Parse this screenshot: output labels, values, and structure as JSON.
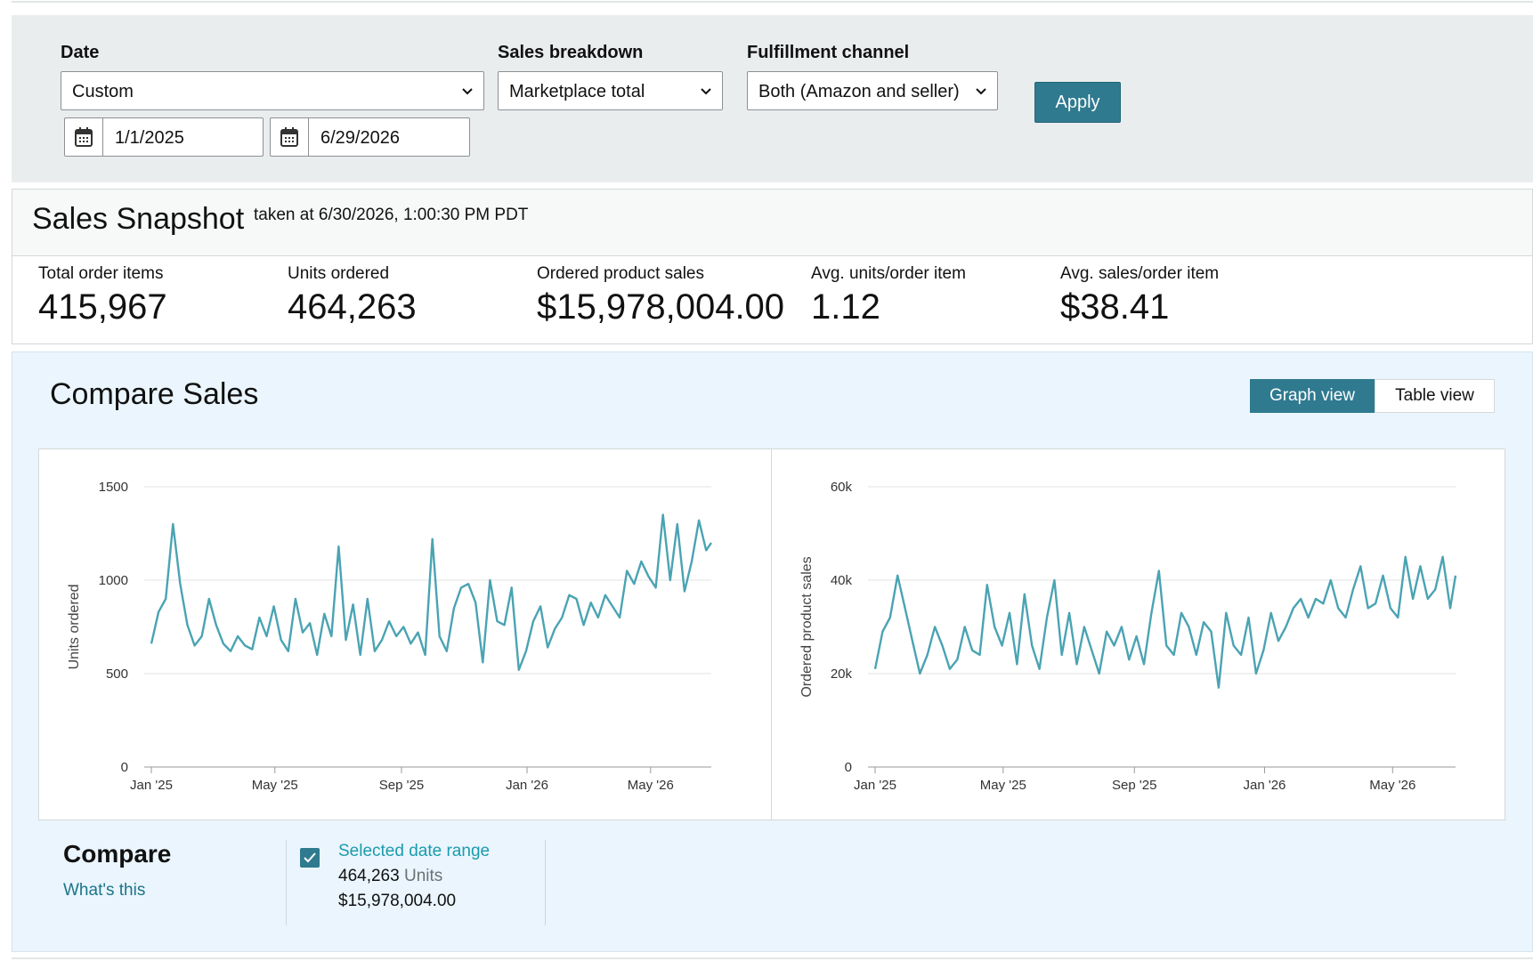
{
  "filters": {
    "date_label": "Date",
    "date_value": "Custom",
    "start_date": "1/1/2025",
    "end_date": "6/29/2026",
    "breakdown_label": "Sales breakdown",
    "breakdown_value": "Marketplace total",
    "fulfillment_label": "Fulfillment channel",
    "fulfillment_value": "Both (Amazon and seller)",
    "apply_label": "Apply"
  },
  "snapshot": {
    "title": "Sales Snapshot",
    "taken": "taken at 6/30/2026, 1:00:30 PM PDT",
    "metrics": [
      {
        "label": "Total order items",
        "value": "415,967"
      },
      {
        "label": "Units ordered",
        "value": "464,263"
      },
      {
        "label": "Ordered product sales",
        "value": "$15,978,004.00"
      },
      {
        "label": "Avg. units/order item",
        "value": "1.12"
      },
      {
        "label": "Avg. sales/order item",
        "value": "$38.41"
      }
    ]
  },
  "compare": {
    "title": "Compare Sales",
    "graph_view": "Graph view",
    "table_view": "Table view",
    "section_title": "Compare",
    "whats_this": "What's this",
    "legend": {
      "name": "Selected date range",
      "units_value": "464,263",
      "units_word": "Units",
      "sales": "$15,978,004.00"
    }
  },
  "colors": {
    "line": "#4aa3b3",
    "accent": "#2f7a8f",
    "link": "#1b7489"
  },
  "icons": [
    "chevron-down-icon",
    "calendar-icon",
    "checkmark-icon"
  ],
  "chart_data": [
    {
      "type": "line",
      "ylabel": "Units ordered",
      "ylim": [
        0,
        1500
      ],
      "yticks": [
        "0",
        "500",
        "1000",
        "1500"
      ],
      "xticks": [
        "Jan '25",
        "May '25",
        "Sep '25",
        "Jan '26",
        "May '26"
      ],
      "grid": true,
      "x_start": "2025-01-01",
      "x_end": "2026-06-29",
      "x": [
        "2025-01-01",
        "2025-01-08",
        "2025-01-15",
        "2025-01-22",
        "2025-01-29",
        "2025-02-05",
        "2025-02-12",
        "2025-02-19",
        "2025-02-26",
        "2025-03-05",
        "2025-03-12",
        "2025-03-19",
        "2025-03-26",
        "2025-04-02",
        "2025-04-09",
        "2025-04-16",
        "2025-04-23",
        "2025-04-30",
        "2025-05-07",
        "2025-05-14",
        "2025-05-21",
        "2025-05-28",
        "2025-06-04",
        "2025-06-11",
        "2025-06-18",
        "2025-06-25",
        "2025-07-02",
        "2025-07-09",
        "2025-07-16",
        "2025-07-23",
        "2025-07-30",
        "2025-08-06",
        "2025-08-13",
        "2025-08-20",
        "2025-08-27",
        "2025-09-03",
        "2025-09-10",
        "2025-09-17",
        "2025-09-24",
        "2025-10-01",
        "2025-10-08",
        "2025-10-15",
        "2025-10-22",
        "2025-10-29",
        "2025-11-05",
        "2025-11-12",
        "2025-11-19",
        "2025-11-26",
        "2025-12-03",
        "2025-12-10",
        "2025-12-17",
        "2025-12-24",
        "2025-12-31",
        "2026-01-07",
        "2026-01-14",
        "2026-01-21",
        "2026-01-28",
        "2026-02-04",
        "2026-02-11",
        "2026-02-18",
        "2026-02-25",
        "2026-03-04",
        "2026-03-11",
        "2026-03-18",
        "2026-03-25",
        "2026-04-01",
        "2026-04-08",
        "2026-04-15",
        "2026-04-22",
        "2026-04-29",
        "2026-05-06",
        "2026-05-13",
        "2026-05-20",
        "2026-05-27",
        "2026-06-03",
        "2026-06-10",
        "2026-06-17",
        "2026-06-24",
        "2026-06-29"
      ],
      "series": [
        {
          "values": [
            660,
            830,
            900,
            1300,
            980,
            760,
            650,
            700,
            900,
            760,
            660,
            620,
            700,
            650,
            630,
            800,
            700,
            860,
            680,
            620,
            900,
            720,
            770,
            600,
            820,
            700,
            1180,
            680,
            870,
            600,
            900,
            620,
            680,
            780,
            700,
            750,
            660,
            720,
            600,
            1220,
            700,
            620,
            850,
            960,
            980,
            880,
            560,
            1000,
            780,
            760,
            960,
            520,
            620,
            780,
            860,
            640,
            740,
            800,
            920,
            900,
            760,
            880,
            800,
            920,
            860,
            800,
            1050,
            980,
            1100,
            1020,
            960,
            1350,
            1000,
            1300,
            940,
            1100,
            1320,
            1160,
            1200
          ]
        }
      ]
    },
    {
      "type": "line",
      "ylabel": "Ordered product sales",
      "ylim": [
        0,
        60000
      ],
      "yticks": [
        "0",
        "20k",
        "40k",
        "60k"
      ],
      "xticks": [
        "Jan '25",
        "May '25",
        "Sep '25",
        "Jan '26",
        "May '26"
      ],
      "grid": true,
      "x_start": "2025-01-01",
      "x_end": "2026-06-29",
      "x": [
        "2025-01-01",
        "2025-01-08",
        "2025-01-15",
        "2025-01-22",
        "2025-01-29",
        "2025-02-05",
        "2025-02-12",
        "2025-02-19",
        "2025-02-26",
        "2025-03-05",
        "2025-03-12",
        "2025-03-19",
        "2025-03-26",
        "2025-04-02",
        "2025-04-09",
        "2025-04-16",
        "2025-04-23",
        "2025-04-30",
        "2025-05-07",
        "2025-05-14",
        "2025-05-21",
        "2025-05-28",
        "2025-06-04",
        "2025-06-11",
        "2025-06-18",
        "2025-06-25",
        "2025-07-02",
        "2025-07-09",
        "2025-07-16",
        "2025-07-23",
        "2025-07-30",
        "2025-08-06",
        "2025-08-13",
        "2025-08-20",
        "2025-08-27",
        "2025-09-03",
        "2025-09-10",
        "2025-09-17",
        "2025-09-24",
        "2025-10-01",
        "2025-10-08",
        "2025-10-15",
        "2025-10-22",
        "2025-10-29",
        "2025-11-05",
        "2025-11-12",
        "2025-11-19",
        "2025-11-26",
        "2025-12-03",
        "2025-12-10",
        "2025-12-17",
        "2025-12-24",
        "2025-12-31",
        "2026-01-07",
        "2026-01-14",
        "2026-01-21",
        "2026-01-28",
        "2026-02-04",
        "2026-02-11",
        "2026-02-18",
        "2026-02-25",
        "2026-03-04",
        "2026-03-11",
        "2026-03-18",
        "2026-03-25",
        "2026-04-01",
        "2026-04-08",
        "2026-04-15",
        "2026-04-22",
        "2026-04-29",
        "2026-05-06",
        "2026-05-13",
        "2026-05-20",
        "2026-05-27",
        "2026-06-03",
        "2026-06-10",
        "2026-06-17",
        "2026-06-24",
        "2026-06-29"
      ],
      "series": [
        {
          "values": [
            21000,
            29000,
            32000,
            41000,
            34000,
            27000,
            20000,
            24000,
            30000,
            26000,
            21000,
            23000,
            30000,
            25000,
            24000,
            39000,
            30000,
            26000,
            33000,
            22000,
            37000,
            26000,
            21000,
            32000,
            40000,
            24000,
            33000,
            22000,
            30000,
            25000,
            20000,
            29000,
            26000,
            30000,
            23000,
            28000,
            22000,
            33000,
            42000,
            26000,
            24000,
            33000,
            30000,
            24000,
            31000,
            29000,
            17000,
            33000,
            26000,
            24000,
            32000,
            20000,
            25000,
            33000,
            27000,
            30000,
            34000,
            36000,
            32000,
            36000,
            35000,
            40000,
            34000,
            32000,
            38000,
            43000,
            34000,
            35000,
            41000,
            34000,
            32000,
            45000,
            36000,
            43000,
            36000,
            38000,
            45000,
            34000,
            41000
          ]
        }
      ]
    }
  ]
}
